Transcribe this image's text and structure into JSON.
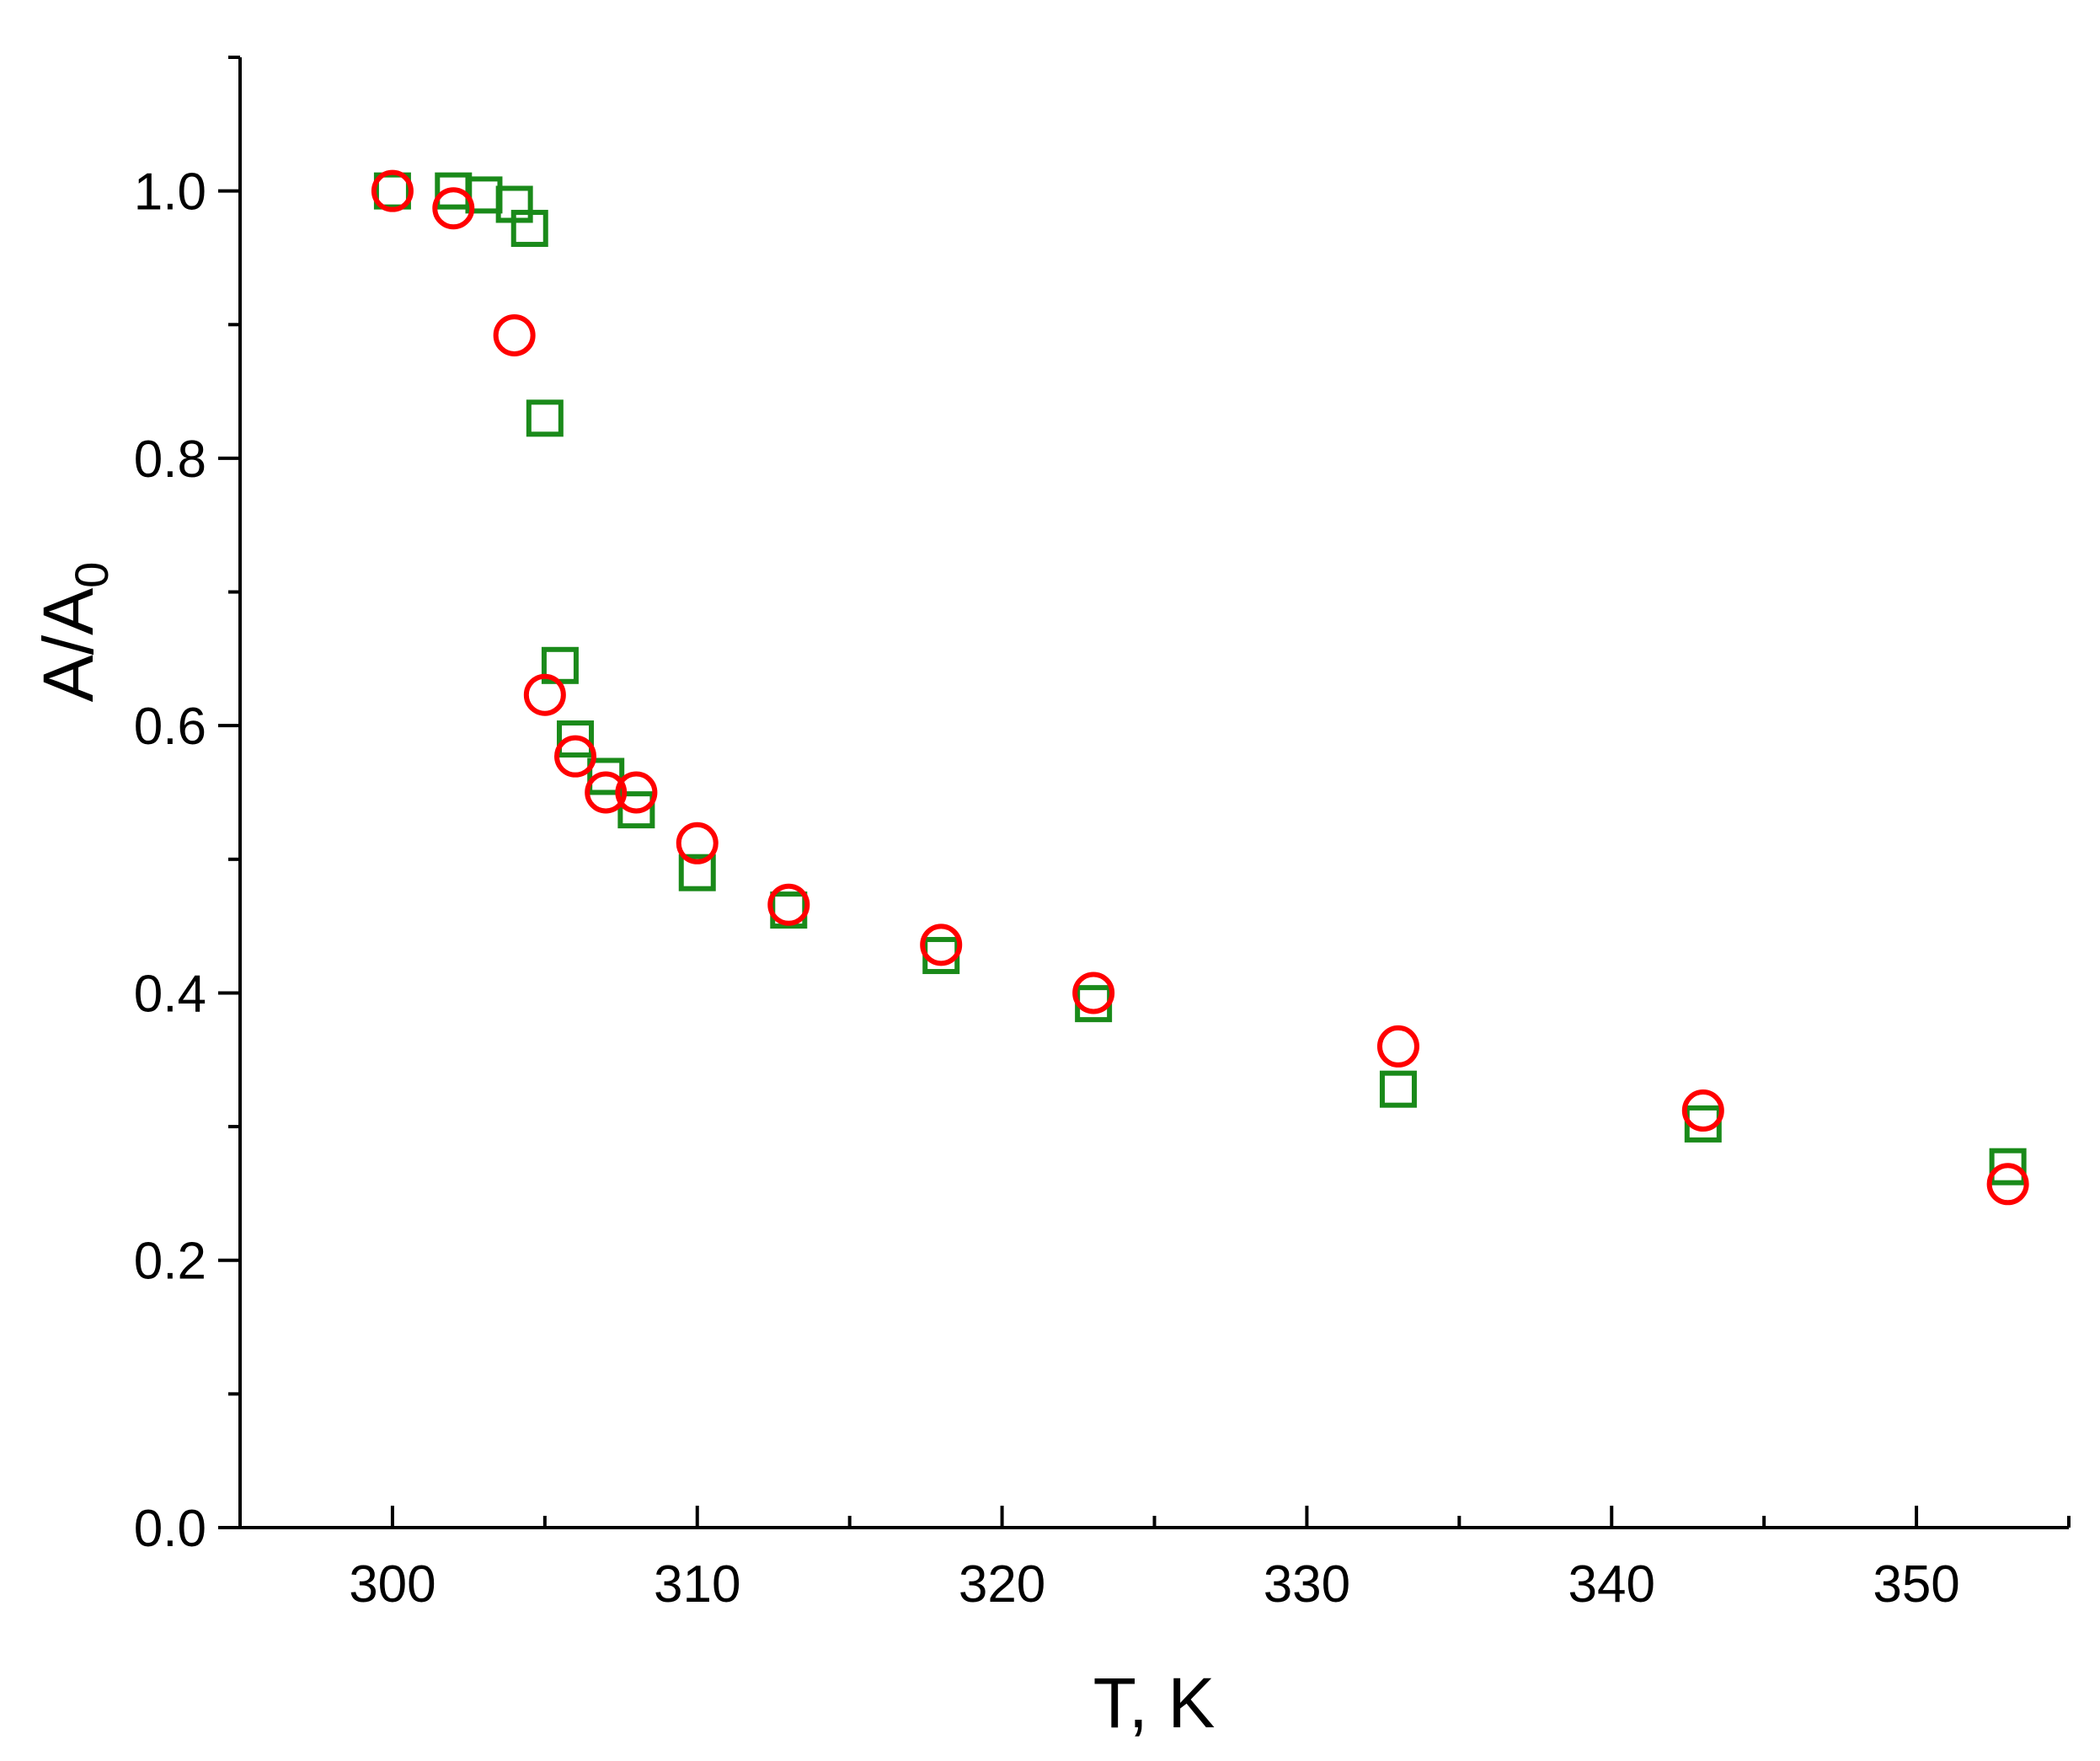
{
  "chart_data": {
    "type": "scatter",
    "title": "",
    "xlabel": "T, K",
    "ylabel": {
      "main": "A/A",
      "subscript": "0"
    },
    "xlim": [
      295,
      355
    ],
    "ylim": [
      0.0,
      1.1
    ],
    "x_ticks": [
      300,
      310,
      320,
      330,
      340,
      350
    ],
    "x_minor_ticks": [
      305,
      315,
      325,
      335,
      345,
      355
    ],
    "y_ticks": [
      0.0,
      0.2,
      0.4,
      0.6,
      0.8,
      1.0
    ],
    "y_minor_ticks": [
      0.1,
      0.3,
      0.5,
      0.7,
      0.9,
      1.1
    ],
    "x_tick_labels": [
      "300",
      "310",
      "320",
      "330",
      "340",
      "350"
    ],
    "y_tick_labels": [
      "0.0",
      "0.2",
      "0.4",
      "0.6",
      "0.8",
      "1.0"
    ],
    "grid": false,
    "legend": "none",
    "series": [
      {
        "marker": "square",
        "color": "#1a8a1a",
        "points": [
          [
            300,
            1.0
          ],
          [
            302,
            1.0
          ],
          [
            303,
            0.997
          ],
          [
            304,
            0.99
          ],
          [
            304.5,
            0.972
          ],
          [
            305,
            0.83
          ],
          [
            305.5,
            0.645
          ],
          [
            306,
            0.59
          ],
          [
            307,
            0.562
          ],
          [
            308,
            0.537
          ],
          [
            310,
            0.49
          ],
          [
            313,
            0.462
          ],
          [
            318,
            0.428
          ],
          [
            323,
            0.392
          ],
          [
            333,
            0.328
          ],
          [
            343,
            0.302
          ],
          [
            353,
            0.27
          ]
        ]
      },
      {
        "marker": "circle",
        "color": "#ff0000",
        "points": [
          [
            300,
            1.0
          ],
          [
            302,
            0.987
          ],
          [
            304,
            0.892
          ],
          [
            305,
            0.623
          ],
          [
            306,
            0.577
          ],
          [
            307,
            0.55
          ],
          [
            308,
            0.55
          ],
          [
            310,
            0.512
          ],
          [
            313,
            0.466
          ],
          [
            318,
            0.436
          ],
          [
            323,
            0.4
          ],
          [
            333,
            0.36
          ],
          [
            343,
            0.312
          ],
          [
            353,
            0.257
          ]
        ]
      }
    ]
  }
}
